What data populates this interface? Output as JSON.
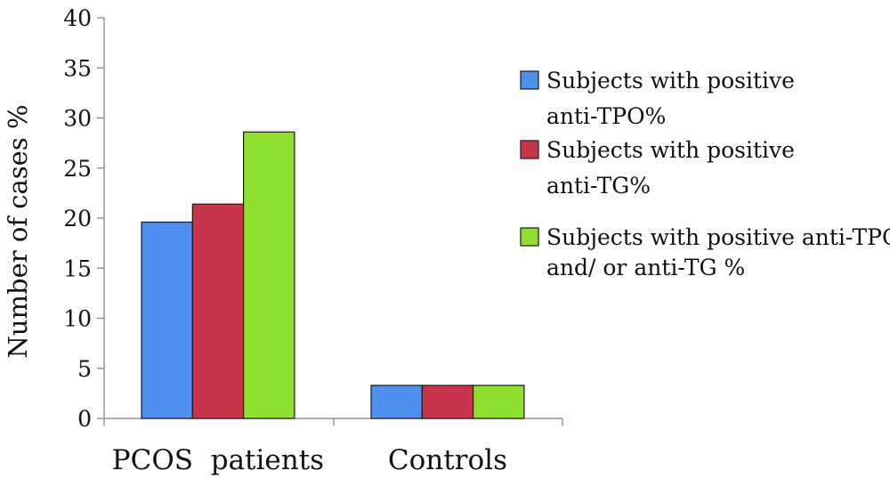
{
  "chart_data": {
    "type": "bar",
    "title": "",
    "xlabel": "",
    "ylabel": "Number of cases %",
    "ylim": [
      0,
      40
    ],
    "yticks": [
      0,
      5,
      10,
      15,
      20,
      25,
      30,
      35,
      40
    ],
    "categories": [
      "PCOS  patients",
      "Controls"
    ],
    "series": [
      {
        "name": "Subjects with positive anti-TPO%",
        "legend_lines": [
          "Subjects with positive",
          "anti-TPO%"
        ],
        "color": "#4f8fef",
        "values": [
          19.6,
          3.3
        ]
      },
      {
        "name": "Subjects with positive anti-TG%",
        "legend_lines": [
          "Subjects with positive",
          "anti-TG%"
        ],
        "color": "#c8354a",
        "values": [
          21.4,
          3.3
        ]
      },
      {
        "name": "Subjects with positive anti-TPO and/ or anti-TG %",
        "legend_lines": [
          "Subjects with positive anti-TPO",
          "and/ or anti-TG %"
        ],
        "color": "#8fe02e",
        "values": [
          28.6,
          3.3
        ]
      }
    ],
    "grid": false,
    "legend_position": "right"
  }
}
